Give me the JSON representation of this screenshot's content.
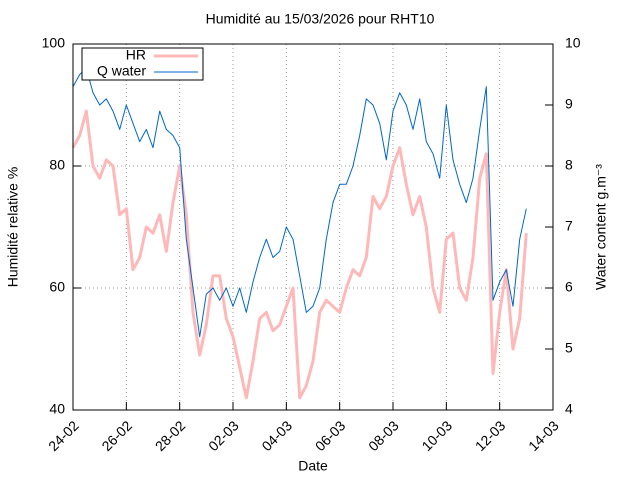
{
  "chart_data": {
    "type": "line",
    "title": "Humidité au 15/03/2026 pour RHT10",
    "xlabel": "Date",
    "ylabel": "Humidité relative %",
    "y2label": "Water content g.m⁻³",
    "x": [
      0,
      0.25,
      0.5,
      0.75,
      1,
      1.25,
      1.5,
      1.75,
      2,
      2.25,
      2.5,
      2.75,
      3,
      3.25,
      3.5,
      3.75,
      4,
      4.25,
      4.5,
      4.75,
      5,
      5.25,
      5.5,
      5.75,
      6,
      6.25,
      6.5,
      6.75,
      7,
      7.25,
      7.5,
      7.75,
      8,
      8.25,
      8.5,
      8.75,
      9,
      9.25,
      9.5,
      9.75,
      10,
      10.25,
      10.5,
      10.75,
      11,
      11.25,
      11.5,
      11.75,
      12,
      12.25,
      12.5,
      12.75,
      13,
      13.25,
      13.5,
      13.75,
      14,
      14.25,
      14.5,
      14.75,
      15,
      15.25,
      15.5,
      15.75,
      16,
      16.25,
      16.5,
      16.75,
      17
    ],
    "series": [
      {
        "name": "HR",
        "color": "#ffb8b8",
        "values": [
          83,
          85,
          89,
          80,
          78,
          81,
          80,
          72,
          73,
          63,
          65,
          70,
          69,
          72,
          66,
          74,
          80,
          72,
          56,
          49,
          54,
          62,
          62,
          55,
          52,
          47,
          42,
          48,
          55,
          56,
          53,
          54,
          57,
          60,
          42,
          44,
          48,
          56,
          58,
          57,
          56,
          60,
          63,
          62,
          65,
          75,
          73,
          75,
          80,
          83,
          77,
          72,
          75,
          70,
          60,
          56,
          68,
          69,
          60,
          58,
          65,
          78,
          82,
          46,
          56,
          63,
          50,
          55,
          69
        ]
      },
      {
        "name": "Q water",
        "color": "#0066cc",
        "axis": "y2",
        "values": [
          9.3,
          9.5,
          9.6,
          9.2,
          9.0,
          9.1,
          8.9,
          8.6,
          9.0,
          8.7,
          8.4,
          8.6,
          8.3,
          8.9,
          8.6,
          8.5,
          8.3,
          6.8,
          6.0,
          5.2,
          5.9,
          6.0,
          5.8,
          6.0,
          5.7,
          6.0,
          5.6,
          6.1,
          6.5,
          6.8,
          6.5,
          6.6,
          7.0,
          6.8,
          6.2,
          5.6,
          5.7,
          6.0,
          6.8,
          7.4,
          7.7,
          7.7,
          8.0,
          8.5,
          9.1,
          9.0,
          8.7,
          8.1,
          8.9,
          9.2,
          9.0,
          8.6,
          9.1,
          8.4,
          8.2,
          7.8,
          9.0,
          8.1,
          7.7,
          7.4,
          7.8,
          8.6,
          9.3,
          5.8,
          6.1,
          6.3,
          5.7,
          6.8,
          7.3
        ]
      }
    ],
    "xlim": [
      0,
      18
    ],
    "xticks": [
      {
        "value": 0,
        "label": "24-02"
      },
      {
        "value": 2,
        "label": "26-02"
      },
      {
        "value": 4,
        "label": "28-02"
      },
      {
        "value": 6,
        "label": "02-03"
      },
      {
        "value": 8,
        "label": "04-03"
      },
      {
        "value": 10,
        "label": "06-03"
      },
      {
        "value": 12,
        "label": "08-03"
      },
      {
        "value": 14,
        "label": "10-03"
      },
      {
        "value": 16,
        "label": "12-03"
      },
      {
        "value": 18,
        "label": "14-03"
      }
    ],
    "ylim": [
      40,
      100
    ],
    "yticks": [
      40,
      60,
      80,
      100
    ],
    "y2lim": [
      4,
      10
    ],
    "y2ticks": [
      4,
      5,
      6,
      7,
      8,
      9,
      10
    ],
    "grid": true,
    "legend": "top-left"
  }
}
